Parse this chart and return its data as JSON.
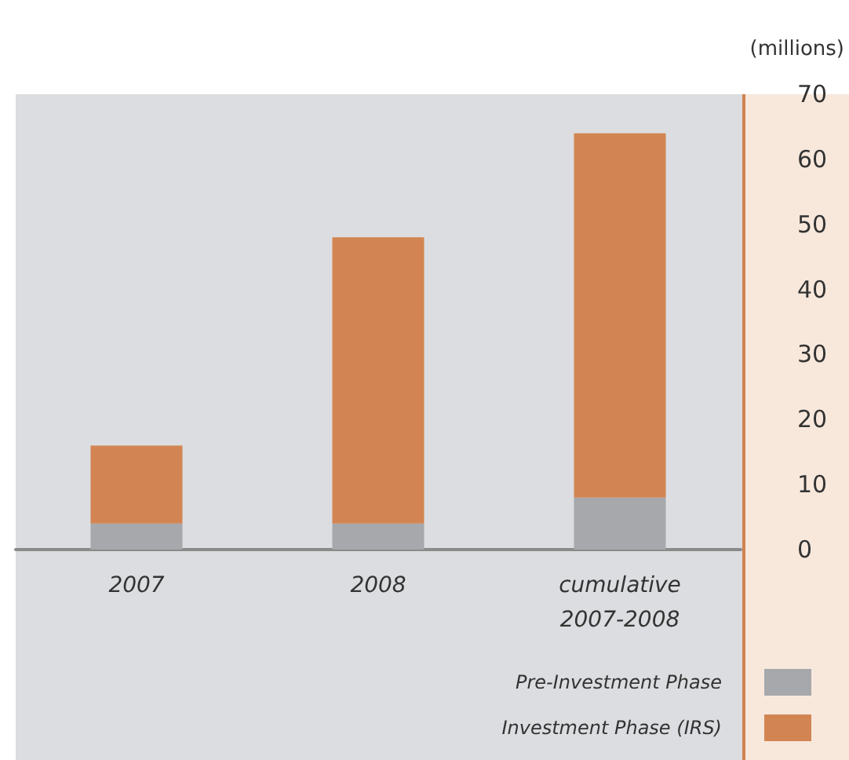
{
  "chart_data": {
    "type": "bar",
    "stacked": true,
    "ylabel": "(millions)",
    "categories": [
      "2007",
      "2008",
      "cumulative\n2007-2008"
    ],
    "series": [
      {
        "name": "Pre-Investment Phase",
        "color": "#a7a8ab",
        "values": [
          4,
          4,
          8
        ]
      },
      {
        "name": "Investment Phase (IRS)",
        "color": "#d28552",
        "values": [
          12,
          44,
          56
        ]
      }
    ],
    "ylim": [
      0,
      70
    ],
    "yticks": [
      0,
      10,
      20,
      30,
      40,
      50,
      60,
      70
    ],
    "legend": "bottom right"
  }
}
